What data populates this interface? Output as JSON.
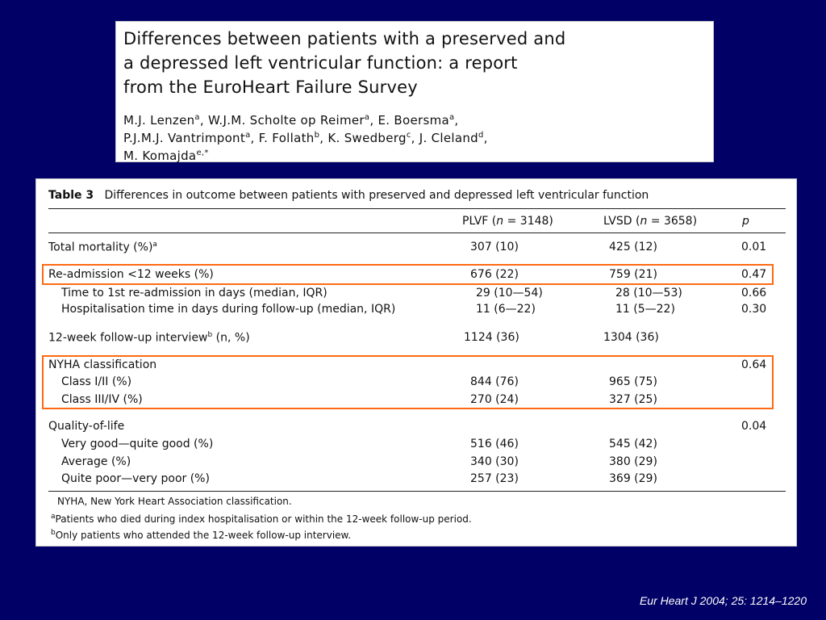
{
  "title": {
    "line1": "Differences between patients with a preserved and",
    "line2": "a depressed left ventricular function: a report",
    "line3": "from the EuroHeart Failure Survey",
    "authors": [
      {
        "name": "M.J. Lenzen",
        "sup": "a"
      },
      {
        "name": "W.J.M. Scholte op Reimer",
        "sup": "a"
      },
      {
        "name": "E. Boersma",
        "sup": "a"
      },
      {
        "name": "P.J.M.J. Vantrimpont",
        "sup": "a"
      },
      {
        "name": "F. Follath",
        "sup": "b"
      },
      {
        "name": "K. Swedberg",
        "sup": "c"
      },
      {
        "name": "J. Cleland",
        "sup": "d"
      },
      {
        "name": "M. Komajda",
        "sup": "e,*"
      }
    ]
  },
  "table": {
    "label": "Table 3",
    "caption": "Differences in outcome between patients with preserved and depressed left ventricular function",
    "headers": {
      "plvf": "PLVF",
      "plvf_n": "3148",
      "lvsd": "LVSD",
      "lvsd_n": "3658",
      "p": "p",
      "n_symbol": "n",
      "eq": " = "
    },
    "rows": [
      {
        "label": "Total mortality (%)",
        "sup": "a",
        "plvf": "307 (10)",
        "lvsd": "425 (12)",
        "p": "0.01",
        "indent": false
      },
      {
        "label": "Re-admission <12 weeks (%)",
        "plvf": "676 (22)",
        "lvsd": "759 (21)",
        "p": "0.47",
        "indent": false
      },
      {
        "label": "Time to 1st re-admission in days (median, IQR)",
        "plvf": "29 (10—54)",
        "lvsd": "28 (10—53)",
        "p": "0.66",
        "indent": true
      },
      {
        "label": "Hospitalisation time in days during follow-up (median, IQR)",
        "plvf": "11 (6—22)",
        "lvsd": "11 (5—22)",
        "p": "0.30",
        "indent": true
      },
      {
        "label": "12-week follow-up interview",
        "sup": "b",
        "suffix": " (n, %)",
        "plvf": "1124 (36)",
        "lvsd": "1304 (36)",
        "p": "",
        "indent": false
      },
      {
        "label": "NYHA classification",
        "plvf": "",
        "lvsd": "",
        "p": "0.64",
        "indent": false
      },
      {
        "label": "Class I/II (%)",
        "plvf": "844 (76)",
        "lvsd": "965 (75)",
        "p": "",
        "indent": true
      },
      {
        "label": "Class III/IV (%)",
        "plvf": "270 (24)",
        "lvsd": "327 (25)",
        "p": "",
        "indent": true
      },
      {
        "label": "Quality-of-life",
        "plvf": "",
        "lvsd": "",
        "p": "0.04",
        "indent": false
      },
      {
        "label": "Very good—quite good (%)",
        "plvf": "516 (46)",
        "lvsd": "545 (42)",
        "p": "",
        "indent": true
      },
      {
        "label": "Average (%)",
        "plvf": "340 (30)",
        "lvsd": "380 (29)",
        "p": "",
        "indent": true
      },
      {
        "label": "Quite poor—very poor (%)",
        "plvf": "257 (23)",
        "lvsd": "369 (29)",
        "p": "",
        "indent": true
      }
    ],
    "footnotes": [
      {
        "sup": "",
        "text": "NYHA, New York Heart Association classification."
      },
      {
        "sup": "a",
        "text": "Patients who died during index hospitalisation or within the 12-week follow-up period."
      },
      {
        "sup": "b",
        "text": "Only patients who attended the 12-week follow-up interview."
      }
    ]
  },
  "citation": "Eur Heart J  2004; 25: 1214–1220",
  "colors": {
    "background": "#000066",
    "highlight": "#ff6a13"
  }
}
